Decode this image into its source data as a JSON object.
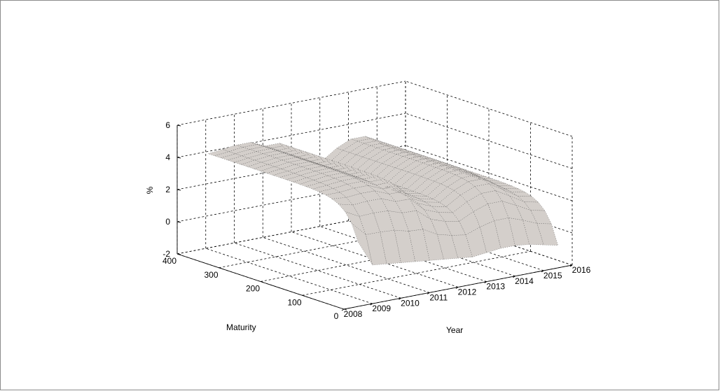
{
  "chart_data": {
    "type": "surface",
    "title": "",
    "xlabel": "Year",
    "ylabel": "Maturity",
    "zlabel": "%",
    "xlim": [
      2008,
      2016
    ],
    "ylim": [
      0,
      400
    ],
    "zlim": [
      -2,
      6
    ],
    "x_ticks": [
      "2008",
      "2009",
      "2010",
      "2011",
      "2012",
      "2013",
      "2014",
      "2015",
      "2016"
    ],
    "y_ticks": [
      "0",
      "100",
      "200",
      "300",
      "400"
    ],
    "z_ticks": [
      "-2",
      "0",
      "2",
      "4",
      "6"
    ],
    "grid": true,
    "colors": {
      "surface": "#d4cfcb",
      "mesh": "#1e1e1e",
      "axes": "#000000"
    },
    "surface": {
      "maturity_max": 360,
      "year_start": 2008.5,
      "year_end": 2015.5,
      "surface_profile": [
        {
          "year": 2008.5,
          "short_rate": 2.0,
          "long_rate": 4.4
        },
        {
          "year": 2009.0,
          "short_rate": 0.4,
          "long_rate": 4.5
        },
        {
          "year": 2009.5,
          "short_rate": 0.3,
          "long_rate": 4.6
        },
        {
          "year": 2010.0,
          "short_rate": 0.2,
          "long_rate": 4.6
        },
        {
          "year": 2010.5,
          "short_rate": 0.1,
          "long_rate": 4.2
        },
        {
          "year": 2011.0,
          "short_rate": 0.0,
          "long_rate": 4.2
        },
        {
          "year": 2011.5,
          "short_rate": -0.1,
          "long_rate": 3.2
        },
        {
          "year": 2012.0,
          "short_rate": -0.2,
          "long_rate": 2.8
        },
        {
          "year": 2012.5,
          "short_rate": -0.3,
          "long_rate": 2.6
        },
        {
          "year": 2013.0,
          "short_rate": -0.2,
          "long_rate": 3.2
        },
        {
          "year": 2013.5,
          "short_rate": -0.1,
          "long_rate": 3.6
        },
        {
          "year": 2014.0,
          "short_rate": -0.1,
          "long_rate": 3.6
        },
        {
          "year": 2014.5,
          "short_rate": -0.2,
          "long_rate": 3.0
        },
        {
          "year": 2015.0,
          "short_rate": -0.4,
          "long_rate": 2.4
        },
        {
          "year": 2015.5,
          "short_rate": -0.6,
          "long_rate": 2.2
        }
      ]
    }
  }
}
